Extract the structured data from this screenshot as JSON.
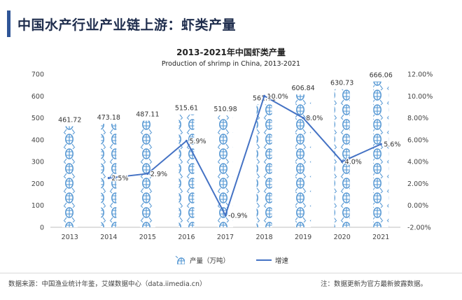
{
  "page": {
    "title": "中国水产行业产业链上游：虾类产量"
  },
  "legend": {
    "bar_label": "产量（万吨）",
    "line_label": "增速"
  },
  "footer": {
    "source": "数据来源：中国渔业统计年鉴，艾媒数据中心（data.iimedia.cn）",
    "note": "注：数据更新为官方最新披露数据。"
  },
  "colors": {
    "bar": "#5b9bd5",
    "line": "#4472c4",
    "accent": "#2f5597"
  },
  "chart_data": {
    "type": "bar",
    "title": "2013-2021年中国虾类产量",
    "subtitle": "Production of shrimp in China, 2013-2021",
    "categories": [
      "2013",
      "2014",
      "2015",
      "2016",
      "2017",
      "2018",
      "2019",
      "2020",
      "2021"
    ],
    "series": [
      {
        "name": "产量（万吨）",
        "type": "bar",
        "axis": "left",
        "values": [
          461.72,
          473.18,
          487.11,
          515.61,
          510.98,
          561.71,
          606.84,
          630.73,
          666.06
        ],
        "labels": [
          "461.72",
          "473.18",
          "487.11",
          "515.61",
          "510.98",
          "561.71",
          "606.84",
          "630.73",
          "666.06"
        ]
      },
      {
        "name": "增速",
        "type": "line",
        "axis": "right",
        "values": [
          null,
          2.5,
          2.9,
          5.9,
          -0.9,
          10.0,
          8.0,
          4.0,
          5.6
        ],
        "labels": [
          "",
          "2.5%",
          "2.9%",
          "5.9%",
          "-0.9%",
          "10.0%",
          "8.0%",
          "4.0%",
          "5.6%"
        ]
      }
    ],
    "y_left": {
      "min": 0,
      "max": 700,
      "ticks": [
        "0",
        "100",
        "200",
        "300",
        "400",
        "500",
        "600",
        "700"
      ]
    },
    "y_right": {
      "min": -2,
      "max": 12,
      "ticks": [
        "-2.00%",
        "0.00%",
        "2.00%",
        "4.00%",
        "6.00%",
        "8.00%",
        "10.00%",
        "12.00%"
      ]
    },
    "grid": false,
    "legend_position": "bottom"
  }
}
